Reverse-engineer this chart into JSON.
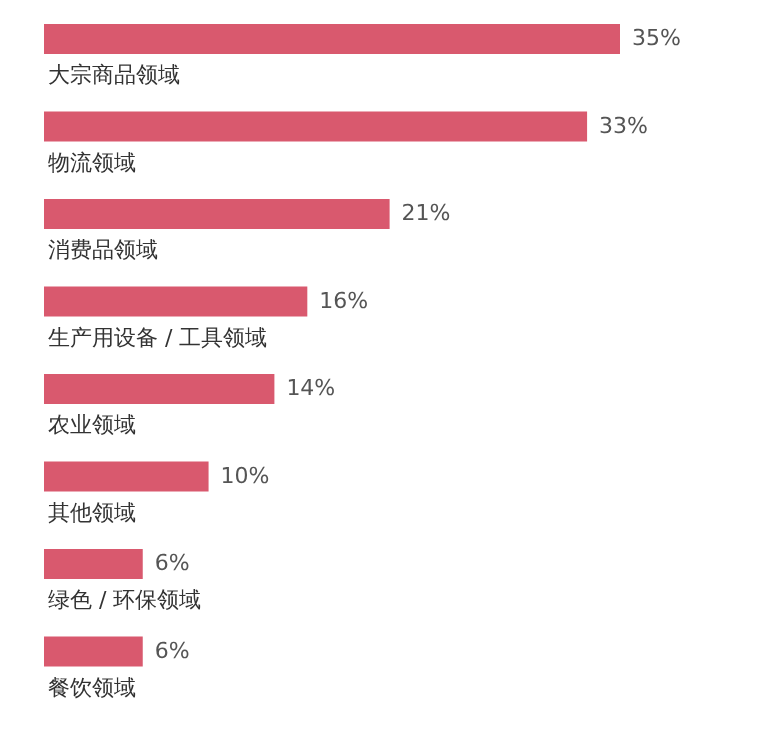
{
  "chart_data": {
    "type": "bar",
    "orientation": "horizontal",
    "categories": [
      "大宗商品领域",
      "物流领域",
      "消费品领域",
      "生产用设备 / 工具领域",
      "农业领域",
      "其他领域",
      "绿色 / 环保领域",
      "餐饮领域"
    ],
    "values": [
      35,
      33,
      21,
      16,
      14,
      10,
      6,
      6
    ],
    "value_labels": [
      "35%",
      "33%",
      "21%",
      "16%",
      "14%",
      "10%",
      "6%",
      "6%"
    ],
    "color": "#d9596e"
  }
}
